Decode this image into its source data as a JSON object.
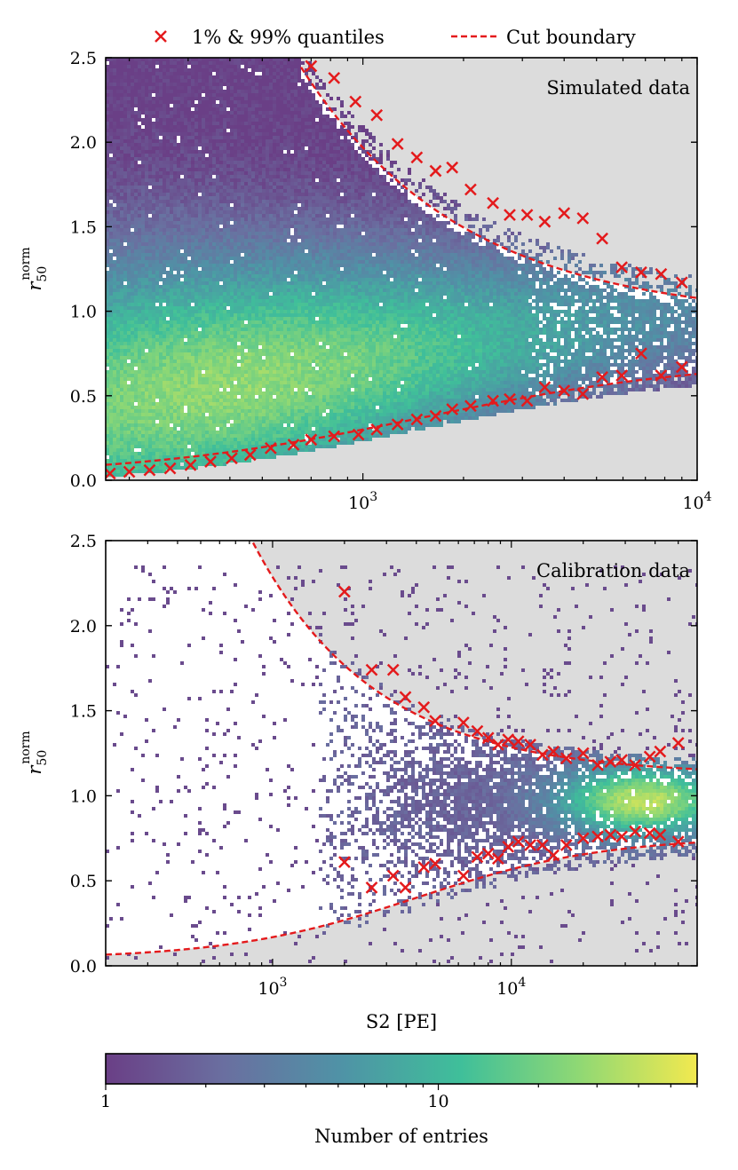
{
  "legend": {
    "quantiles_label": "1% & 99% quantiles",
    "cut_label": "Cut boundary",
    "placement": "top"
  },
  "colors": {
    "marker": "#e41a1c",
    "cut_line": "#e41a1c",
    "background_excluded": "#dcdcdc",
    "colormap": [
      "#6a3f86",
      "#6a6fa0",
      "#4f93a6",
      "#3fbf9a",
      "#8fd874",
      "#f2e94f"
    ]
  },
  "colorbar": {
    "label": "Number of entries",
    "scale": "log",
    "range": [
      1,
      60
    ],
    "tick_labels": [
      "1",
      "10"
    ]
  },
  "chart_data": [
    {
      "type": "heatmap",
      "panel_id": "top",
      "annotation": "Simulated data",
      "xlabel": "",
      "ylabel_main": "r",
      "ylabel_sub": "50",
      "ylabel_sup": "norm",
      "xscale": "log",
      "xlim": [
        170,
        10000
      ],
      "ylim": [
        0,
        2.5
      ],
      "x_ticks": [
        {
          "base": "10",
          "exp": "3",
          "value": 1000
        },
        {
          "base": "10",
          "exp": "4",
          "value": 10000
        }
      ],
      "y_tick_labels": [
        "0.0",
        "0.5",
        "1.0",
        "1.5",
        "2.0",
        "2.5"
      ],
      "quantile_upper": [
        {
          "x": 700,
          "y": 2.45
        },
        {
          "x": 820,
          "y": 2.38
        },
        {
          "x": 950,
          "y": 2.24
        },
        {
          "x": 1100,
          "y": 2.16
        },
        {
          "x": 1270,
          "y": 1.99
        },
        {
          "x": 1450,
          "y": 1.91
        },
        {
          "x": 1650,
          "y": 1.83
        },
        {
          "x": 1850,
          "y": 1.85
        },
        {
          "x": 2100,
          "y": 1.72
        },
        {
          "x": 2450,
          "y": 1.64
        },
        {
          "x": 2750,
          "y": 1.57
        },
        {
          "x": 3100,
          "y": 1.57
        },
        {
          "x": 3500,
          "y": 1.53
        },
        {
          "x": 4000,
          "y": 1.58
        },
        {
          "x": 4550,
          "y": 1.55
        },
        {
          "x": 5200,
          "y": 1.43
        },
        {
          "x": 5950,
          "y": 1.26
        },
        {
          "x": 6800,
          "y": 1.23
        },
        {
          "x": 7800,
          "y": 1.22
        },
        {
          "x": 9000,
          "y": 1.17
        }
      ],
      "quantile_lower": [
        {
          "x": 175,
          "y": 0.04
        },
        {
          "x": 200,
          "y": 0.05
        },
        {
          "x": 230,
          "y": 0.06
        },
        {
          "x": 265,
          "y": 0.07
        },
        {
          "x": 305,
          "y": 0.09
        },
        {
          "x": 350,
          "y": 0.11
        },
        {
          "x": 405,
          "y": 0.13
        },
        {
          "x": 460,
          "y": 0.15
        },
        {
          "x": 530,
          "y": 0.19
        },
        {
          "x": 620,
          "y": 0.21
        },
        {
          "x": 700,
          "y": 0.24
        },
        {
          "x": 820,
          "y": 0.26
        },
        {
          "x": 970,
          "y": 0.27
        },
        {
          "x": 1100,
          "y": 0.3
        },
        {
          "x": 1270,
          "y": 0.33
        },
        {
          "x": 1450,
          "y": 0.36
        },
        {
          "x": 1650,
          "y": 0.38
        },
        {
          "x": 1850,
          "y": 0.42
        },
        {
          "x": 2100,
          "y": 0.44
        },
        {
          "x": 2450,
          "y": 0.47
        },
        {
          "x": 2750,
          "y": 0.48
        },
        {
          "x": 3100,
          "y": 0.47
        },
        {
          "x": 3500,
          "y": 0.55
        },
        {
          "x": 4000,
          "y": 0.53
        },
        {
          "x": 4550,
          "y": 0.51
        },
        {
          "x": 5200,
          "y": 0.61
        },
        {
          "x": 5950,
          "y": 0.62
        },
        {
          "x": 6800,
          "y": 0.75
        },
        {
          "x": 7800,
          "y": 0.62
        },
        {
          "x": 9000,
          "y": 0.67
        }
      ],
      "cut_upper": {
        "x_start": 650,
        "x_end": 10000,
        "a": 0.95,
        "b": 1.5,
        "x0": 650,
        "p": 0.9
      },
      "cut_lower": {
        "x_start": 170,
        "x_end": 10000,
        "y0": 0.02,
        "ymax": 0.72,
        "xc": 1500,
        "p": 1.0
      }
    },
    {
      "type": "heatmap",
      "panel_id": "bottom",
      "annotation": "Calibration data",
      "xlabel": "S2 [PE]",
      "ylabel_main": "r",
      "ylabel_sub": "50",
      "ylabel_sup": "norm",
      "xscale": "log",
      "xlim": [
        200,
        60000
      ],
      "ylim": [
        0,
        2.5
      ],
      "x_ticks": [
        {
          "base": "10",
          "exp": "3",
          "value": 1000
        },
        {
          "base": "10",
          "exp": "4",
          "value": 10000
        }
      ],
      "y_tick_labels": [
        "0.0",
        "0.5",
        "1.0",
        "1.5",
        "2.0",
        "2.5"
      ],
      "quantile_upper": [
        {
          "x": 2000,
          "y": 2.2
        },
        {
          "x": 2600,
          "y": 1.74
        },
        {
          "x": 3200,
          "y": 1.74
        },
        {
          "x": 3600,
          "y": 1.58
        },
        {
          "x": 4300,
          "y": 1.52
        },
        {
          "x": 4800,
          "y": 1.44
        },
        {
          "x": 6300,
          "y": 1.43
        },
        {
          "x": 7200,
          "y": 1.38
        },
        {
          "x": 8000,
          "y": 1.34
        },
        {
          "x": 8800,
          "y": 1.3
        },
        {
          "x": 9700,
          "y": 1.33
        },
        {
          "x": 10700,
          "y": 1.32
        },
        {
          "x": 12000,
          "y": 1.3
        },
        {
          "x": 13500,
          "y": 1.24
        },
        {
          "x": 15000,
          "y": 1.26
        },
        {
          "x": 17000,
          "y": 1.22
        },
        {
          "x": 20000,
          "y": 1.25
        },
        {
          "x": 23000,
          "y": 1.18
        },
        {
          "x": 26000,
          "y": 1.2
        },
        {
          "x": 29000,
          "y": 1.21
        },
        {
          "x": 33000,
          "y": 1.18
        },
        {
          "x": 38000,
          "y": 1.23
        },
        {
          "x": 42000,
          "y": 1.26
        },
        {
          "x": 50000,
          "y": 1.31
        }
      ],
      "quantile_lower": [
        {
          "x": 2000,
          "y": 0.61
        },
        {
          "x": 2600,
          "y": 0.46
        },
        {
          "x": 3200,
          "y": 0.53
        },
        {
          "x": 3600,
          "y": 0.46
        },
        {
          "x": 4300,
          "y": 0.58
        },
        {
          "x": 4800,
          "y": 0.6
        },
        {
          "x": 6300,
          "y": 0.53
        },
        {
          "x": 7200,
          "y": 0.64
        },
        {
          "x": 8000,
          "y": 0.66
        },
        {
          "x": 8800,
          "y": 0.63
        },
        {
          "x": 9700,
          "y": 0.7
        },
        {
          "x": 10700,
          "y": 0.73
        },
        {
          "x": 12000,
          "y": 0.71
        },
        {
          "x": 13500,
          "y": 0.71
        },
        {
          "x": 15000,
          "y": 0.65
        },
        {
          "x": 17000,
          "y": 0.71
        },
        {
          "x": 20000,
          "y": 0.75
        },
        {
          "x": 23000,
          "y": 0.76
        },
        {
          "x": 26000,
          "y": 0.77
        },
        {
          "x": 29000,
          "y": 0.76
        },
        {
          "x": 33000,
          "y": 0.79
        },
        {
          "x": 38000,
          "y": 0.78
        },
        {
          "x": 42000,
          "y": 0.77
        },
        {
          "x": 50000,
          "y": 0.73
        }
      ],
      "cut_upper": {
        "x_start": 820,
        "x_end": 60000,
        "a": 1.12,
        "b": 1.38,
        "x0": 820,
        "p": 0.85
      },
      "cut_lower": {
        "x_start": 200,
        "x_end": 60000,
        "y0": 0.04,
        "ymax": 0.76,
        "xc": 4000,
        "p": 1.1
      }
    }
  ]
}
